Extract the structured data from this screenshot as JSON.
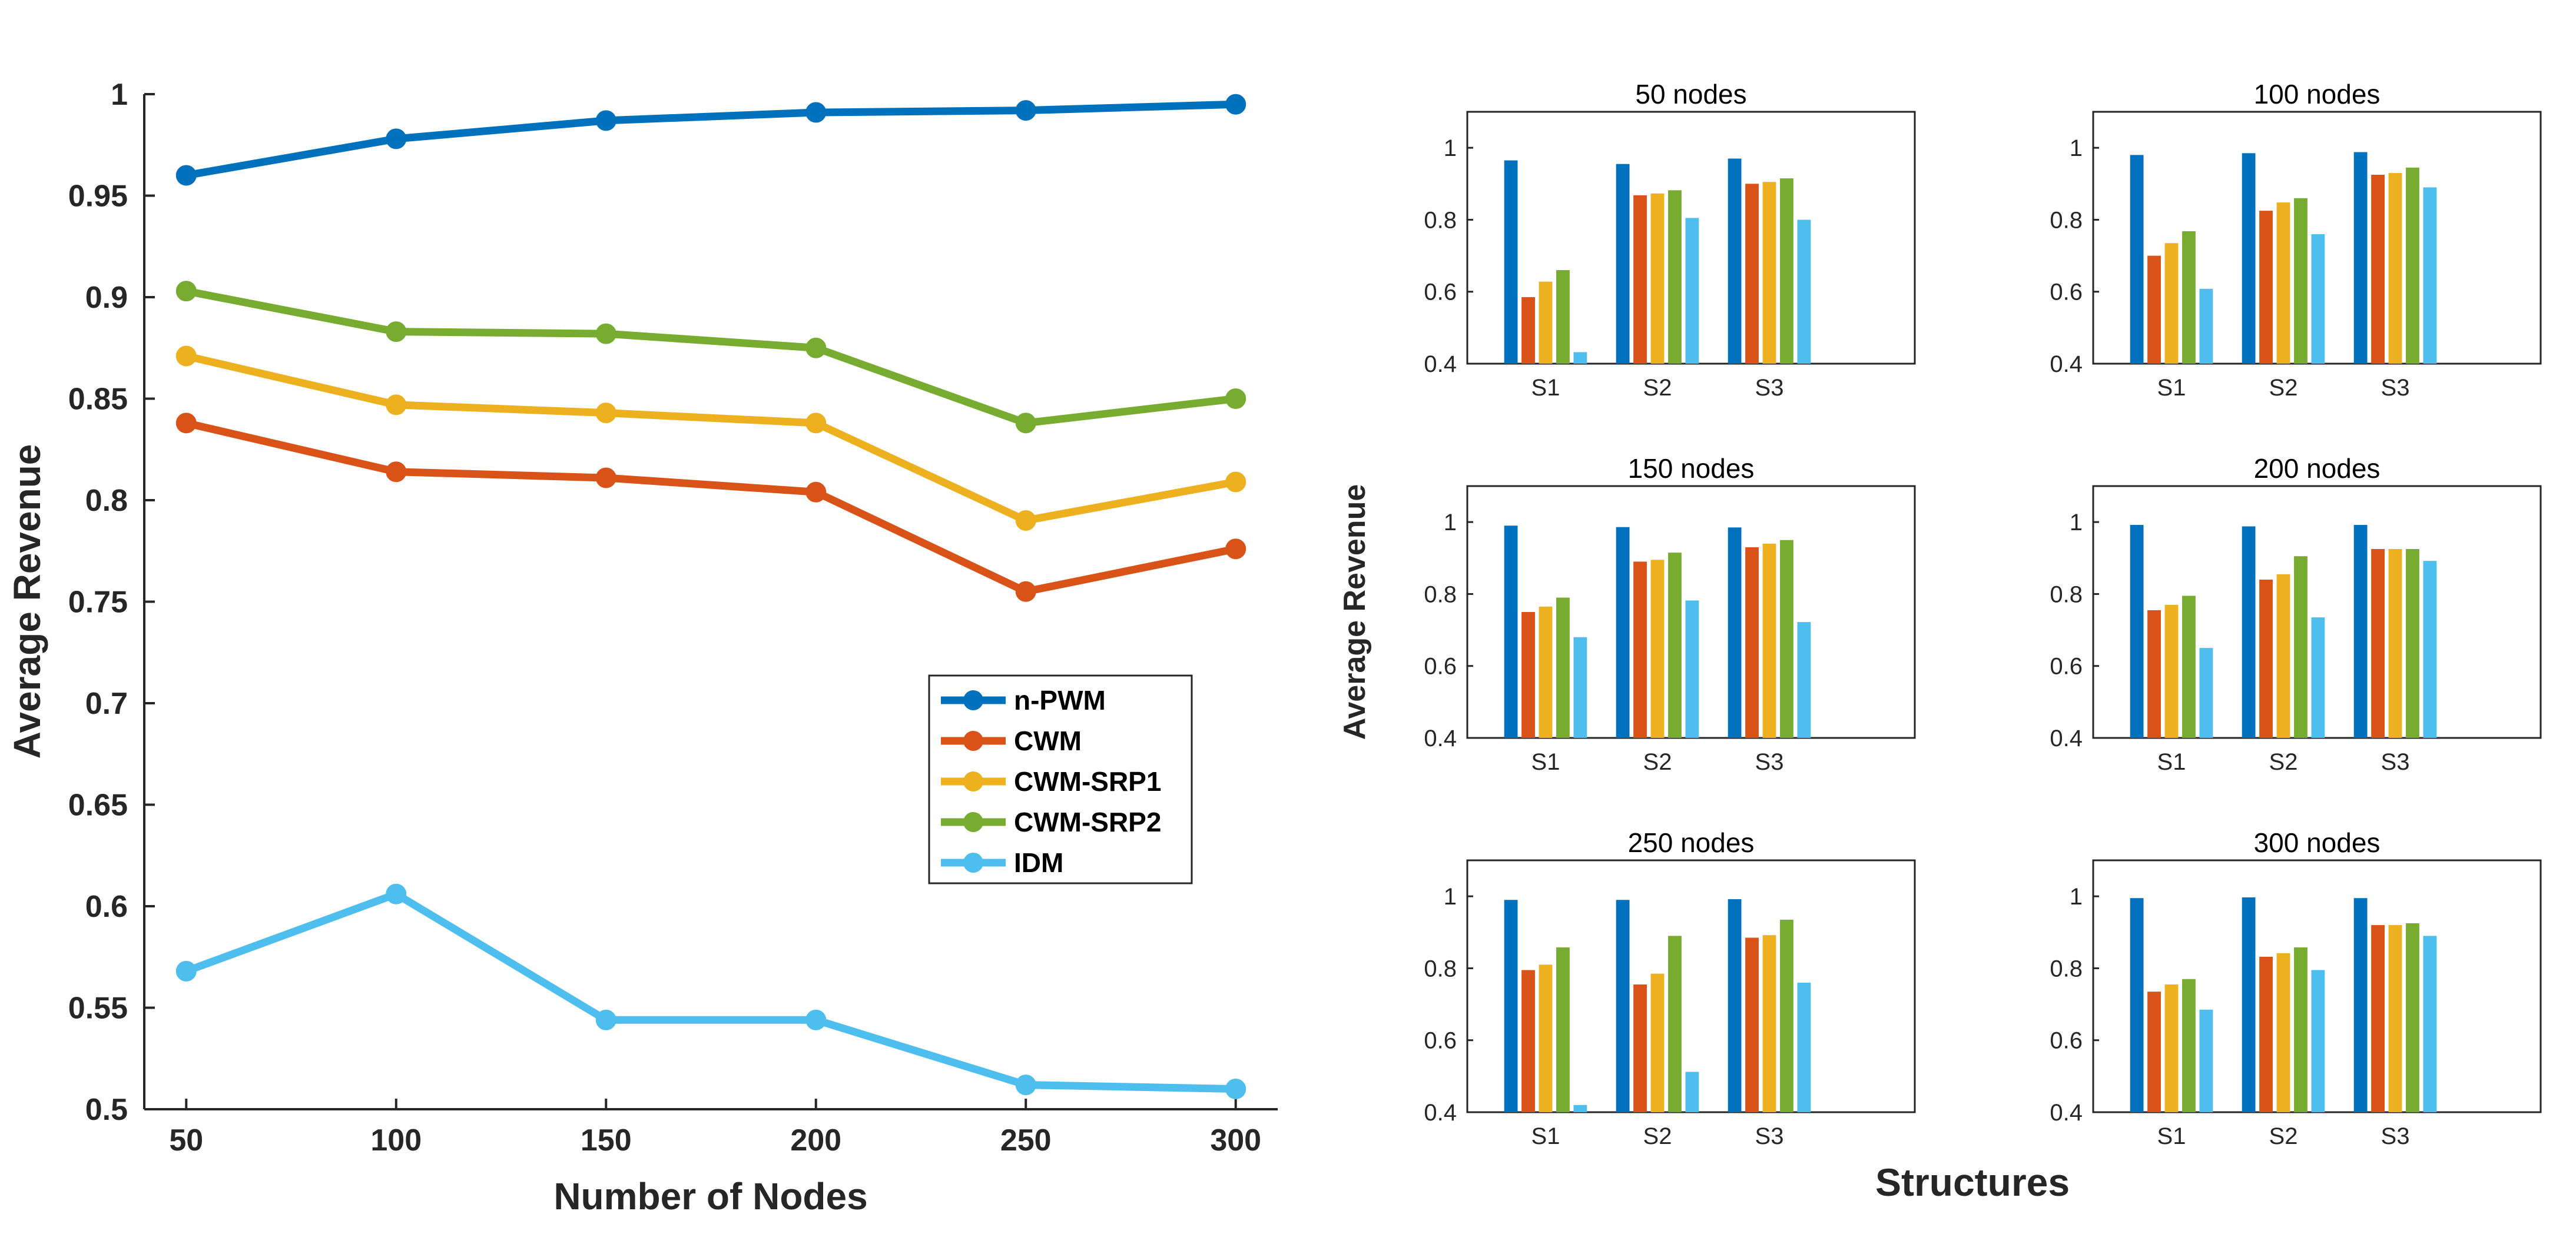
{
  "chart_data": [
    {
      "type": "line",
      "id": "left",
      "title": "",
      "xlabel": "Number of Nodes",
      "ylabel": "Average Revenue",
      "x": [
        50,
        100,
        150,
        200,
        250,
        300
      ],
      "xlim": [
        40,
        310
      ],
      "ylim": [
        0.5,
        1.0
      ],
      "yticks": [
        0.5,
        0.55,
        0.6,
        0.65,
        0.7,
        0.75,
        0.8,
        0.85,
        0.9,
        0.95,
        1
      ],
      "ytick_labels": [
        "0.5",
        "0.55",
        "0.6",
        "0.65",
        "0.7",
        "0.75",
        "0.8",
        "0.85",
        "0.9",
        "0.95",
        "1"
      ],
      "xtick_labels": [
        "50",
        "100",
        "150",
        "200",
        "250",
        "300"
      ],
      "legend_position": "center-right",
      "series": [
        {
          "name": "n-PWM",
          "color": "#0072BD",
          "values": [
            0.96,
            0.978,
            0.987,
            0.991,
            0.992,
            0.995
          ]
        },
        {
          "name": "CWM",
          "color": "#D95319",
          "values": [
            0.838,
            0.814,
            0.811,
            0.804,
            0.755,
            0.776
          ]
        },
        {
          "name": "CWM-SRP1",
          "color": "#EDB120",
          "values": [
            0.871,
            0.847,
            0.843,
            0.838,
            0.79,
            0.809
          ]
        },
        {
          "name": "CWM-SRP2",
          "color": "#77AC30",
          "values": [
            0.903,
            0.883,
            0.882,
            0.875,
            0.838,
            0.85
          ]
        },
        {
          "name": "IDM",
          "color": "#4DBEEE",
          "values": [
            0.568,
            0.606,
            0.544,
            0.544,
            0.512,
            0.51
          ]
        }
      ]
    },
    {
      "type": "bar",
      "id": "b50",
      "title": "50 nodes",
      "categories": [
        "S1",
        "S2",
        "S3"
      ],
      "ylim": [
        0.4,
        1.1
      ],
      "yticks": [
        0.4,
        0.6,
        0.8,
        1
      ],
      "ytick_labels": [
        "0.4",
        "0.6",
        "0.8",
        "1"
      ],
      "series": [
        {
          "name": "n-PWM",
          "values": [
            0.965,
            0.955,
            0.97
          ]
        },
        {
          "name": "CWM",
          "values": [
            0.585,
            0.868,
            0.9
          ]
        },
        {
          "name": "CWM-SRP1",
          "values": [
            0.628,
            0.873,
            0.905
          ]
        },
        {
          "name": "CWM-SRP2",
          "values": [
            0.66,
            0.882,
            0.915
          ]
        },
        {
          "name": "IDM",
          "values": [
            0.432,
            0.805,
            0.8
          ]
        }
      ]
    },
    {
      "type": "bar",
      "id": "b100",
      "title": "100 nodes",
      "categories": [
        "S1",
        "S2",
        "S3"
      ],
      "ylim": [
        0.4,
        1.1
      ],
      "yticks": [
        0.4,
        0.6,
        0.8,
        1
      ],
      "ytick_labels": [
        "0.4",
        "0.6",
        "0.8",
        "1"
      ],
      "series": [
        {
          "name": "n-PWM",
          "values": [
            0.98,
            0.985,
            0.988
          ]
        },
        {
          "name": "CWM",
          "values": [
            0.7,
            0.825,
            0.925
          ]
        },
        {
          "name": "CWM-SRP1",
          "values": [
            0.735,
            0.848,
            0.93
          ]
        },
        {
          "name": "CWM-SRP2",
          "values": [
            0.768,
            0.86,
            0.945
          ]
        },
        {
          "name": "IDM",
          "values": [
            0.608,
            0.76,
            0.89
          ]
        }
      ]
    },
    {
      "type": "bar",
      "id": "b150",
      "title": "150 nodes",
      "categories": [
        "S1",
        "S2",
        "S3"
      ],
      "ylim": [
        0.4,
        1.1
      ],
      "yticks": [
        0.4,
        0.6,
        0.8,
        1
      ],
      "ytick_labels": [
        "0.4",
        "0.6",
        "0.8",
        "1"
      ],
      "series": [
        {
          "name": "n-PWM",
          "values": [
            0.99,
            0.986,
            0.985
          ]
        },
        {
          "name": "CWM",
          "values": [
            0.75,
            0.89,
            0.93
          ]
        },
        {
          "name": "CWM-SRP1",
          "values": [
            0.765,
            0.895,
            0.94
          ]
        },
        {
          "name": "CWM-SRP2",
          "values": [
            0.79,
            0.915,
            0.95
          ]
        },
        {
          "name": "IDM",
          "values": [
            0.68,
            0.782,
            0.722
          ]
        }
      ]
    },
    {
      "type": "bar",
      "id": "b200",
      "title": "200 nodes",
      "categories": [
        "S1",
        "S2",
        "S3"
      ],
      "ylim": [
        0.4,
        1.1
      ],
      "yticks": [
        0.4,
        0.6,
        0.8,
        1
      ],
      "ytick_labels": [
        "0.4",
        "0.6",
        "0.8",
        "1"
      ],
      "series": [
        {
          "name": "n-PWM",
          "values": [
            0.992,
            0.988,
            0.992
          ]
        },
        {
          "name": "CWM",
          "values": [
            0.755,
            0.84,
            0.925
          ]
        },
        {
          "name": "CWM-SRP1",
          "values": [
            0.77,
            0.855,
            0.925
          ]
        },
        {
          "name": "CWM-SRP2",
          "values": [
            0.795,
            0.905,
            0.925
          ]
        },
        {
          "name": "IDM",
          "values": [
            0.65,
            0.735,
            0.892
          ]
        }
      ]
    },
    {
      "type": "bar",
      "id": "b250",
      "title": "250 nodes",
      "categories": [
        "S1",
        "S2",
        "S3"
      ],
      "ylim": [
        0.4,
        1.1
      ],
      "yticks": [
        0.4,
        0.6,
        0.8,
        1
      ],
      "ytick_labels": [
        "0.4",
        "0.6",
        "0.8",
        "1"
      ],
      "series": [
        {
          "name": "n-PWM",
          "values": [
            0.99,
            0.99,
            0.992
          ]
        },
        {
          "name": "CWM",
          "values": [
            0.795,
            0.755,
            0.885
          ]
        },
        {
          "name": "CWM-SRP1",
          "values": [
            0.81,
            0.785,
            0.892
          ]
        },
        {
          "name": "CWM-SRP2",
          "values": [
            0.858,
            0.89,
            0.935
          ]
        },
        {
          "name": "IDM",
          "values": [
            0.42,
            0.512,
            0.76
          ]
        }
      ]
    },
    {
      "type": "bar",
      "id": "b300",
      "title": "300 nodes",
      "categories": [
        "S1",
        "S2",
        "S3"
      ],
      "ylim": [
        0.4,
        1.1
      ],
      "yticks": [
        0.4,
        0.6,
        0.8,
        1
      ],
      "ytick_labels": [
        "0.4",
        "0.6",
        "0.8",
        "1"
      ],
      "series": [
        {
          "name": "n-PWM",
          "values": [
            0.995,
            0.997,
            0.995
          ]
        },
        {
          "name": "CWM",
          "values": [
            0.735,
            0.832,
            0.92
          ]
        },
        {
          "name": "CWM-SRP1",
          "values": [
            0.755,
            0.842,
            0.92
          ]
        },
        {
          "name": "CWM-SRP2",
          "values": [
            0.77,
            0.858,
            0.925
          ]
        },
        {
          "name": "IDM",
          "values": [
            0.685,
            0.795,
            0.89
          ]
        }
      ]
    }
  ],
  "bar_group": {
    "ylabel": "Average Revenue",
    "xlabel": "Structures"
  }
}
